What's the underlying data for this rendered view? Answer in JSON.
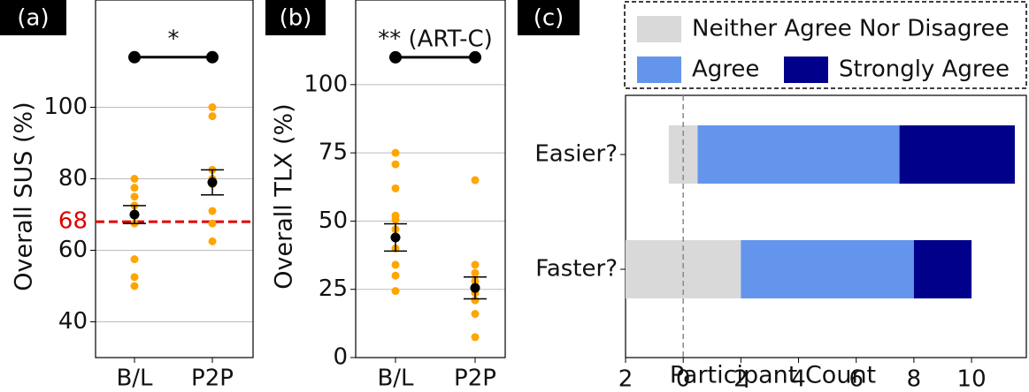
{
  "chart_data": [
    {
      "type": "strip",
      "panel_label": "(a)",
      "ylabel": "Overall SUS (%)",
      "categories": [
        "B/L",
        "P2P"
      ],
      "points": [
        [
          80,
          77.5,
          75,
          72.5,
          70,
          67.5,
          57.5,
          52.5,
          50
        ],
        [
          100,
          97.5,
          82.5,
          80,
          78.5,
          71,
          67.5,
          62.5
        ]
      ],
      "means": [
        70,
        79
      ],
      "errors": [
        2.5,
        3.5
      ],
      "point_color": "#FFA500",
      "mean_color": "#000000",
      "reference_line": {
        "value": 68,
        "color": "#e00000"
      },
      "significance": {
        "label": "*",
        "value": 114
      },
      "ylim": [
        30,
        130
      ],
      "yticks": [
        40,
        60,
        80,
        100
      ],
      "grid": true
    },
    {
      "type": "strip",
      "panel_label": "(b)",
      "ylabel": "Overall TLX (%)",
      "categories": [
        "B/L",
        "P2P"
      ],
      "points": [
        [
          75,
          70.8,
          62,
          52,
          50.5,
          47,
          44,
          40,
          34,
          30,
          24.4
        ],
        [
          65,
          34,
          31,
          28,
          26,
          23.7,
          21,
          16,
          7.5
        ]
      ],
      "means": [
        44,
        25.5
      ],
      "errors": [
        5,
        4
      ],
      "point_color": "#FFA500",
      "mean_color": "#000000",
      "significance": {
        "label": "** (ART-C)",
        "value": 110
      },
      "ylim": [
        0,
        131
      ],
      "yticks": [
        0,
        25,
        50,
        75,
        100
      ],
      "grid": true
    },
    {
      "type": "diverging_bar",
      "panel_label": "(c)",
      "xlabel": "Participant Count",
      "categories": [
        "Easier?",
        "Faster?"
      ],
      "series": [
        {
          "name": "Neither Agree Nor Disagree",
          "color": "#d9d9d9",
          "values": [
            1,
            4
          ]
        },
        {
          "name": "Agree",
          "color": "#6495ed",
          "values": [
            7,
            6
          ]
        },
        {
          "name": "Strongly Agree",
          "color": "#00008b",
          "values": [
            4,
            2
          ]
        }
      ],
      "xlim": [
        -2,
        11.9
      ],
      "xticks": [
        {
          "value": -2,
          "label": "2"
        },
        0,
        2,
        4,
        6,
        8,
        10
      ],
      "zero_line": true
    }
  ]
}
